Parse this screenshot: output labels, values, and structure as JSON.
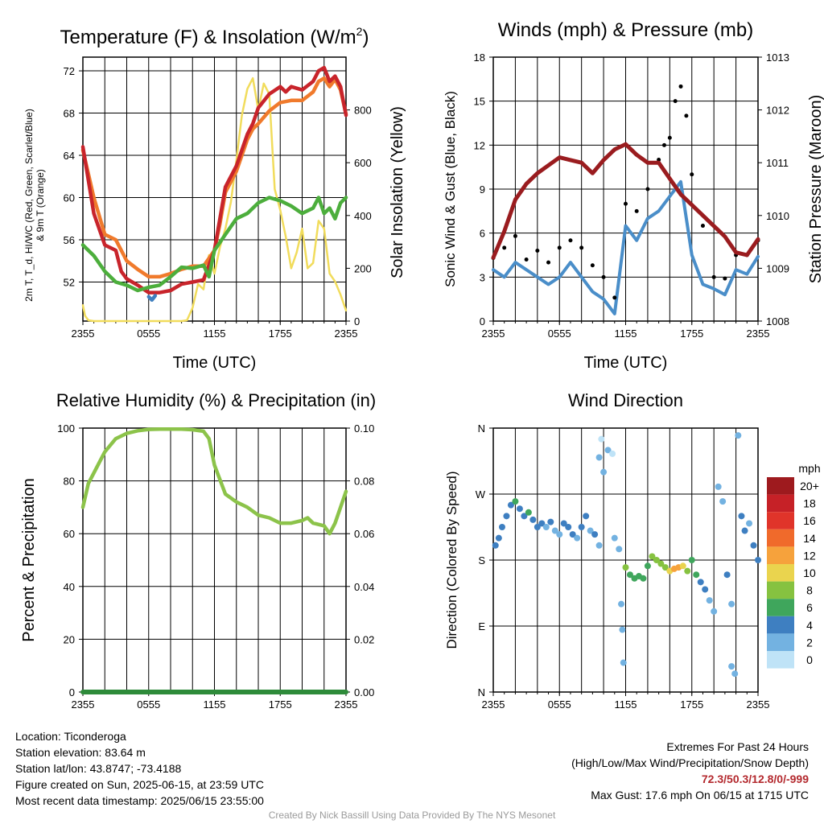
{
  "panels": {
    "temperature": {
      "title": "Temperature (F) & Insolation (W/m",
      "title_sup": "2",
      "title_end": ")",
      "ylabel_left": "2m T, T_d, HI/WC (Red, Green, Scarlet/Blue) & 9m T (Orange)",
      "ylabel_right": "Solar Insolation (Yellow)",
      "xlabel": "Time (UTC)"
    },
    "winds": {
      "title": "Winds (mph) & Pressure (mb)",
      "ylabel_left": "Sonic Wind & Gust (Blue, Black)",
      "ylabel_right": "Station Pressure (Maroon)",
      "xlabel": "Time (UTC)"
    },
    "humidity": {
      "title": "Relative Humidity (%) & Precipitation (in)",
      "ylabel_left": "Percent & Precipitation"
    },
    "direction": {
      "title": "Wind Direction",
      "ylabel_left": "Direction (Colored By Speed)",
      "colorbar_title": "mph",
      "colorbar_labels": [
        "20+",
        "18",
        "16",
        "14",
        "12",
        "10",
        "8",
        "6",
        "4",
        "2",
        "0"
      ],
      "colorbar_colors": [
        "#9e1a1e",
        "#c62127",
        "#e0342a",
        "#f06a2b",
        "#f6a23c",
        "#ead44e",
        "#86c240",
        "#3fa65c",
        "#3e7fc1",
        "#73b2e1",
        "#bfe3f7"
      ]
    }
  },
  "info": {
    "location": "Location: Ticonderoga",
    "elevation": "Station elevation: 83.64 m",
    "latlon": "Station lat/lon: 43.8747; -73.4188",
    "created": "Figure created on Sun, 2025-06-15, at 23:59 UTC",
    "recent": "Most recent data timestamp: 2025/06/15 23:55:00",
    "extremes_title": "Extremes For Past 24 Hours",
    "extremes_desc": "(High/Low/Max Wind/Precipitation/Snow Depth)",
    "extremes_values": "72.3/50.3/12.8/0/-999",
    "max_gust": "Max Gust: 17.6 mph On 06/15 at 1715 UTC"
  },
  "footer": "Created By Nick Bassill Using Data Provided By The NYS Mesonet",
  "chart_data": [
    {
      "type": "line",
      "title": "Temperature (F) & Insolation (W/m2)",
      "xlabel": "Time (UTC)",
      "ylabel": "2m T, Td, HI/WC (Red, Green, Scarlet/Blue) & 9m T (Orange)",
      "y2label": "Solar Insolation (Yellow)",
      "x_ticks": [
        "2355",
        "0555",
        "1155",
        "1755",
        "2355"
      ],
      "x_range_hours": [
        0,
        24
      ],
      "ylim": [
        48.3,
        73.3
      ],
      "y_ticks": [
        52,
        56,
        60,
        64,
        68,
        72
      ],
      "y2lim": [
        0,
        1000
      ],
      "y2_ticks": [
        0,
        200,
        400,
        600,
        800
      ],
      "grid": true,
      "series": [
        {
          "color": "#c8242b",
          "axis": "left",
          "x": [
            0,
            1,
            2,
            3,
            3.5,
            4,
            5,
            6,
            7,
            8,
            9,
            10,
            11,
            12,
            12.5,
            13,
            14,
            15,
            15.5,
            16,
            17,
            18,
            18.5,
            19,
            20,
            21,
            21.5,
            22,
            22.5,
            23,
            23.5,
            24
          ],
          "y": [
            64.8,
            58.5,
            55.5,
            55,
            53,
            52.3,
            51.7,
            51,
            51,
            51.2,
            51.8,
            52,
            52.2,
            55,
            58,
            61,
            63,
            66,
            67,
            68.5,
            69.8,
            70.5,
            70,
            70.5,
            70.2,
            71,
            72,
            72.3,
            71,
            71.5,
            70.5,
            67.8
          ]
        },
        {
          "color": "#f07a2c",
          "axis": "left",
          "x": [
            0,
            1,
            2,
            3,
            4,
            5,
            6,
            7,
            8,
            9,
            10,
            11,
            12,
            12.5,
            13,
            14,
            15,
            15.5,
            16,
            17,
            18,
            19,
            20,
            21,
            21.5,
            22,
            22.5,
            23,
            23.5,
            24
          ],
          "y": [
            64.5,
            60,
            56.5,
            56,
            54,
            53.2,
            52.5,
            52.5,
            52.8,
            53.2,
            53.5,
            53.5,
            55,
            57.5,
            60.5,
            62.5,
            65.5,
            66.5,
            67,
            68.2,
            69,
            69.2,
            69.2,
            70,
            71,
            71.3,
            70.5,
            71.2,
            70.2,
            67.9
          ]
        },
        {
          "color": "#4cae3c",
          "axis": "left",
          "x": [
            0,
            1,
            2,
            3,
            4,
            5,
            6,
            7,
            8,
            9,
            10,
            11,
            11.5,
            12,
            13,
            14,
            15,
            16,
            17,
            18,
            19,
            20,
            21,
            21.5,
            22,
            22.5,
            23,
            23.5,
            24
          ],
          "y": [
            55.5,
            54.5,
            53,
            52,
            51.7,
            51.2,
            51.5,
            51.7,
            52.5,
            53.4,
            53.3,
            53.6,
            52.5,
            55,
            56.5,
            58,
            58.5,
            59.5,
            60,
            59.7,
            59.2,
            58.5,
            59,
            60,
            58.5,
            59,
            58,
            59.5,
            60
          ]
        },
        {
          "color": "#3f7fbf",
          "axis": "left",
          "x": [
            6.0,
            6.3,
            6.6
          ],
          "y": [
            50.6,
            50.3,
            50.7
          ]
        },
        {
          "color": "#f1dc5c",
          "axis": "right",
          "x": [
            0,
            0.2,
            0.5,
            1,
            2,
            3,
            4,
            5,
            6,
            7,
            8,
            9,
            9.5,
            10,
            10.5,
            11,
            11.5,
            12,
            12.5,
            13,
            13.5,
            14,
            14.5,
            15,
            15.5,
            16,
            16.5,
            17,
            17.5,
            18,
            18.5,
            19,
            19.5,
            20,
            20.5,
            21,
            21.5,
            22,
            22.5,
            23,
            23.5,
            24
          ],
          "y": [
            60,
            20,
            3,
            0,
            0,
            0,
            0,
            0,
            0,
            0,
            0,
            0,
            3,
            50,
            140,
            120,
            250,
            180,
            280,
            350,
            450,
            610,
            780,
            880,
            920,
            800,
            900,
            860,
            500,
            420,
            320,
            200,
            260,
            350,
            200,
            220,
            380,
            350,
            180,
            150,
            100,
            40
          ]
        }
      ]
    },
    {
      "type": "line",
      "title": "Winds (mph) & Pressure (mb)",
      "xlabel": "Time (UTC)",
      "ylabel": "Sonic Wind & Gust (Blue, Black)",
      "y2label": "Station Pressure (Maroon)",
      "x_ticks": [
        "2355",
        "0555",
        "1155",
        "1755",
        "2355"
      ],
      "x_range_hours": [
        0,
        24
      ],
      "ylim": [
        0,
        18
      ],
      "y_ticks": [
        0,
        3,
        6,
        9,
        12,
        15,
        18
      ],
      "y2lim": [
        1008,
        1013
      ],
      "y2_ticks": [
        1008,
        1009,
        1010,
        1011,
        1012,
        1013
      ],
      "grid": true,
      "series": [
        {
          "color": "#4a8ec9",
          "axis": "left",
          "x": [
            0,
            1,
            2,
            3,
            4,
            5,
            6,
            7,
            8,
            9,
            10,
            11,
            12,
            13,
            14,
            15,
            16,
            17,
            18,
            19,
            20,
            21,
            22,
            23,
            24
          ],
          "y": [
            3.5,
            3,
            4,
            3.5,
            3,
            2.5,
            3,
            4,
            3,
            2,
            1.5,
            0.5,
            6.5,
            5.5,
            7,
            7.5,
            8.5,
            9.5,
            4.5,
            2.5,
            2.2,
            1.8,
            3.5,
            3.2,
            4.4
          ]
        },
        {
          "color": "#000000",
          "axis": "left",
          "x": [
            0,
            1,
            2,
            3,
            4,
            5,
            6,
            7,
            8,
            9,
            10,
            11,
            12,
            13,
            14,
            15,
            15.5,
            16,
            16.5,
            17,
            17.5,
            18,
            19,
            20,
            21,
            22,
            23,
            24
          ],
          "y": [
            4.3,
            5,
            5.8,
            4.2,
            4.8,
            4,
            5,
            5.5,
            5,
            3.8,
            3,
            1.6,
            8,
            7.5,
            9,
            11,
            12,
            12.5,
            15,
            16,
            14,
            10,
            6.5,
            3,
            2.9,
            4.5,
            4.5,
            5.5
          ]
        },
        {
          "color": "#9a1c1f",
          "axis": "right",
          "x": [
            0,
            1,
            2,
            3,
            4,
            5,
            6,
            7,
            8,
            9,
            10,
            11,
            12,
            13,
            14,
            15,
            16,
            17,
            18,
            19,
            20,
            21,
            22,
            23,
            24
          ],
          "y": [
            1009.2,
            1009.7,
            1010.3,
            1010.6,
            1010.8,
            1010.95,
            1011.1,
            1011.05,
            1011.0,
            1010.8,
            1011.05,
            1011.25,
            1011.35,
            1011.15,
            1011.0,
            1011.0,
            1010.7,
            1010.4,
            1010.2,
            1010.0,
            1009.8,
            1009.6,
            1009.3,
            1009.25,
            1009.55
          ]
        }
      ]
    },
    {
      "type": "line",
      "title": "Relative Humidity (%) & Precipitation (in)",
      "ylabel": "Percent & Precipitation",
      "x_ticks": [
        "2355",
        "0555",
        "1155",
        "1755",
        "2355"
      ],
      "x_range_hours": [
        0,
        24
      ],
      "ylim": [
        0,
        100
      ],
      "y_ticks": [
        0,
        20,
        40,
        60,
        80,
        100
      ],
      "y2lim": [
        0,
        0.1
      ],
      "y2_ticks": [
        "0.00",
        "0.02",
        "0.04",
        "0.06",
        "0.08",
        "0.10"
      ],
      "grid": true,
      "series": [
        {
          "color": "#8cc34a",
          "axis": "left",
          "x": [
            0,
            0.5,
            1,
            2,
            3,
            4,
            5,
            6,
            7,
            8,
            9,
            10,
            11,
            11.5,
            12,
            13,
            14,
            15,
            16,
            17,
            18,
            19,
            20,
            20.5,
            21,
            22,
            22.5,
            23,
            24
          ],
          "y": [
            70,
            79,
            83,
            91,
            96,
            98,
            99,
            99.5,
            99.6,
            99.6,
            99.6,
            99.4,
            98.8,
            96,
            86,
            75,
            72,
            70,
            67,
            66,
            64,
            64,
            65,
            66,
            64,
            63,
            60,
            64,
            76
          ]
        },
        {
          "color": "#2e8b3a",
          "axis": "right",
          "x": [
            0,
            24
          ],
          "y": [
            0,
            0
          ]
        }
      ]
    },
    {
      "type": "scatter",
      "title": "Wind Direction",
      "ylabel": "Direction (Colored By Speed)",
      "x_ticks": [
        "2355",
        "0555",
        "1155",
        "1755",
        "2355"
      ],
      "x_range_hours": [
        0,
        24
      ],
      "y_ticks": [
        "N",
        "E",
        "S",
        "W",
        "N"
      ],
      "ylim_degrees": [
        0,
        360
      ],
      "colorbar": "mph, 0 to 20+",
      "grid": true,
      "points": [
        {
          "x": 0.2,
          "dir": 200,
          "spd": 4
        },
        {
          "x": 0.5,
          "dir": 210,
          "spd": 4
        },
        {
          "x": 0.8,
          "dir": 225,
          "spd": 3
        },
        {
          "x": 1.2,
          "dir": 240,
          "spd": 4
        },
        {
          "x": 1.6,
          "dir": 255,
          "spd": 4
        },
        {
          "x": 2,
          "dir": 260,
          "spd": 5
        },
        {
          "x": 2.4,
          "dir": 250,
          "spd": 4
        },
        {
          "x": 2.8,
          "dir": 240,
          "spd": 4
        },
        {
          "x": 3.2,
          "dir": 245,
          "spd": 5
        },
        {
          "x": 3.6,
          "dir": 235,
          "spd": 3
        },
        {
          "x": 4,
          "dir": 225,
          "spd": 3
        },
        {
          "x": 4.4,
          "dir": 230,
          "spd": 4
        },
        {
          "x": 4.8,
          "dir": 225,
          "spd": 2
        },
        {
          "x": 5.2,
          "dir": 232,
          "spd": 3
        },
        {
          "x": 5.6,
          "dir": 220,
          "spd": 2
        },
        {
          "x": 6,
          "dir": 215,
          "spd": 2
        },
        {
          "x": 6.4,
          "dir": 230,
          "spd": 3
        },
        {
          "x": 6.8,
          "dir": 225,
          "spd": 4
        },
        {
          "x": 7.2,
          "dir": 215,
          "spd": 3
        },
        {
          "x": 7.6,
          "dir": 210,
          "spd": 2
        },
        {
          "x": 8,
          "dir": 225,
          "spd": 3
        },
        {
          "x": 8.4,
          "dir": 240,
          "spd": 3
        },
        {
          "x": 8.8,
          "dir": 220,
          "spd": 2
        },
        {
          "x": 9.2,
          "dir": 215,
          "spd": 3
        },
        {
          "x": 9.6,
          "dir": 200,
          "spd": 1
        },
        {
          "x": 9.6,
          "dir": 320,
          "spd": 1
        },
        {
          "x": 9.8,
          "dir": 345,
          "spd": 0
        },
        {
          "x": 10,
          "dir": 300,
          "spd": 1
        },
        {
          "x": 10.4,
          "dir": 330,
          "spd": 1
        },
        {
          "x": 10.8,
          "dir": 325,
          "spd": 0
        },
        {
          "x": 11,
          "dir": 210,
          "spd": 2
        },
        {
          "x": 11.4,
          "dir": 195,
          "spd": 1
        },
        {
          "x": 11.6,
          "dir": 120,
          "spd": 1
        },
        {
          "x": 11.7,
          "dir": 85,
          "spd": 1
        },
        {
          "x": 11.8,
          "dir": 40,
          "spd": 2
        },
        {
          "x": 12,
          "dir": 170,
          "spd": 7
        },
        {
          "x": 12.4,
          "dir": 160,
          "spd": 6
        },
        {
          "x": 12.8,
          "dir": 155,
          "spd": 6
        },
        {
          "x": 13.2,
          "dir": 158,
          "spd": 6
        },
        {
          "x": 13.6,
          "dir": 155,
          "spd": 5
        },
        {
          "x": 14,
          "dir": 172,
          "spd": 5
        },
        {
          "x": 14.4,
          "dir": 185,
          "spd": 8
        },
        {
          "x": 14.8,
          "dir": 180,
          "spd": 8
        },
        {
          "x": 15.2,
          "dir": 175,
          "spd": 7
        },
        {
          "x": 15.6,
          "dir": 170,
          "spd": 8
        },
        {
          "x": 16,
          "dir": 165,
          "spd": 9
        },
        {
          "x": 16.4,
          "dir": 168,
          "spd": 11
        },
        {
          "x": 16.8,
          "dir": 170,
          "spd": 12
        },
        {
          "x": 17.2,
          "dir": 172,
          "spd": 10
        },
        {
          "x": 17.6,
          "dir": 165,
          "spd": 8
        },
        {
          "x": 18,
          "dir": 180,
          "spd": 6
        },
        {
          "x": 18.4,
          "dir": 160,
          "spd": 5
        },
        {
          "x": 18.8,
          "dir": 150,
          "spd": 4
        },
        {
          "x": 19.2,
          "dir": 140,
          "spd": 3
        },
        {
          "x": 19.6,
          "dir": 125,
          "spd": 2
        },
        {
          "x": 20,
          "dir": 110,
          "spd": 2
        },
        {
          "x": 20.4,
          "dir": 280,
          "spd": 2
        },
        {
          "x": 20.8,
          "dir": 260,
          "spd": 1
        },
        {
          "x": 21.2,
          "dir": 160,
          "spd": 3
        },
        {
          "x": 21.6,
          "dir": 120,
          "spd": 1
        },
        {
          "x": 21.6,
          "dir": 35,
          "spd": 1
        },
        {
          "x": 21.9,
          "dir": 25,
          "spd": 2
        },
        {
          "x": 22.2,
          "dir": 350,
          "spd": 1
        },
        {
          "x": 22.5,
          "dir": 240,
          "spd": 3
        },
        {
          "x": 22.8,
          "dir": 220,
          "spd": 3
        },
        {
          "x": 23.2,
          "dir": 230,
          "spd": 2
        },
        {
          "x": 23.6,
          "dir": 200,
          "spd": 3
        },
        {
          "x": 24,
          "dir": 180,
          "spd": 4
        }
      ]
    }
  ]
}
